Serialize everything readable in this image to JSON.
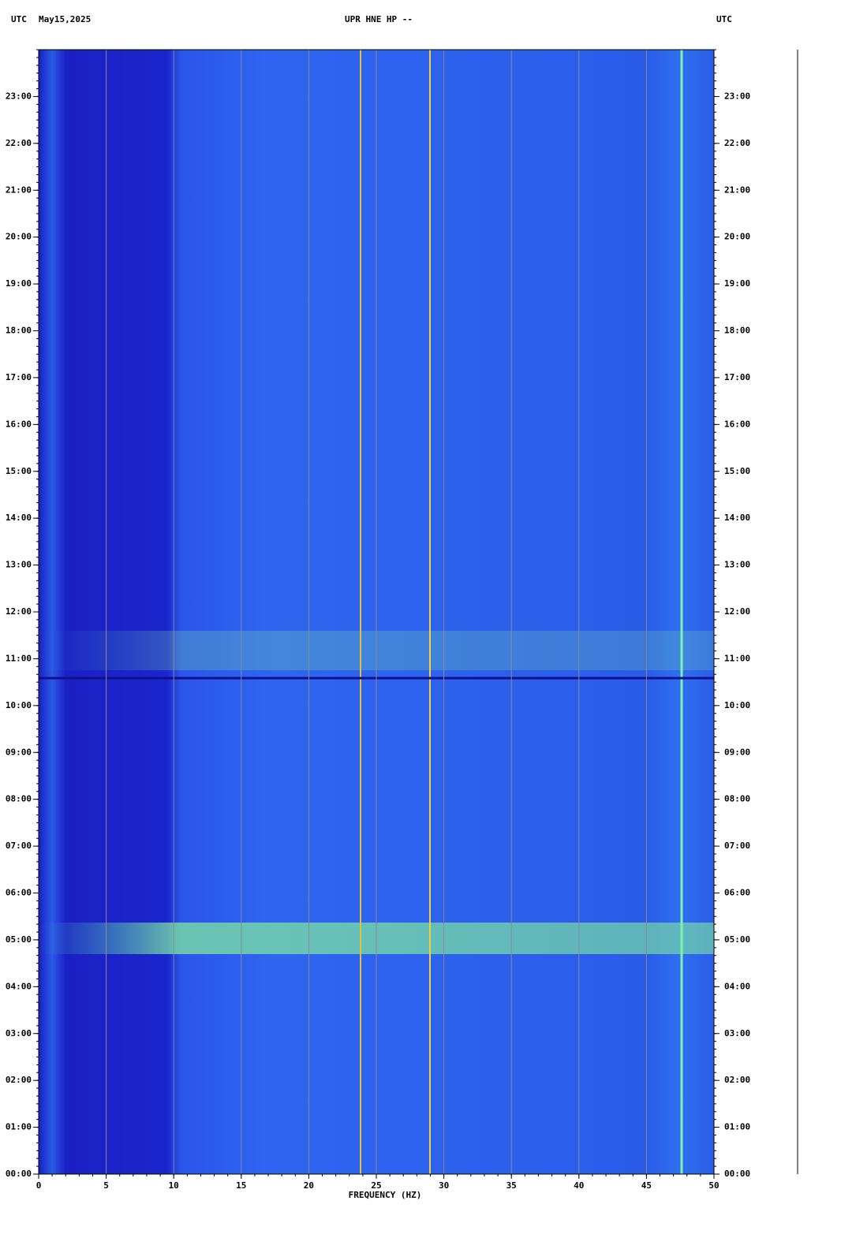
{
  "header": {
    "left_zone": "UTC",
    "date": "May15,2025",
    "station": "UPR HNE HP --",
    "right_zone": "UTC"
  },
  "chart_data": {
    "type": "spectrogram",
    "xlabel": "FREQUENCY (HZ)",
    "xlim": [
      0,
      50
    ],
    "xticks": [
      0,
      5,
      10,
      15,
      20,
      25,
      30,
      35,
      40,
      45,
      50
    ],
    "ylim": [
      0,
      24
    ],
    "yticks": [
      {
        "value": 0,
        "label": "00:00"
      },
      {
        "value": 1,
        "label": "01:00"
      },
      {
        "value": 2,
        "label": "02:00"
      },
      {
        "value": 3,
        "label": "03:00"
      },
      {
        "value": 4,
        "label": "04:00"
      },
      {
        "value": 5,
        "label": "05:00"
      },
      {
        "value": 6,
        "label": "06:00"
      },
      {
        "value": 7,
        "label": "07:00"
      },
      {
        "value": 8,
        "label": "08:00"
      },
      {
        "value": 9,
        "label": "09:00"
      },
      {
        "value": 10,
        "label": "10:00"
      },
      {
        "value": 11,
        "label": "11:00"
      },
      {
        "value": 12,
        "label": "12:00"
      },
      {
        "value": 13,
        "label": "13:00"
      },
      {
        "value": 14,
        "label": "14:00"
      },
      {
        "value": 15,
        "label": "15:00"
      },
      {
        "value": 16,
        "label": "16:00"
      },
      {
        "value": 17,
        "label": "17:00"
      },
      {
        "value": 18,
        "label": "18:00"
      },
      {
        "value": 19,
        "label": "19:00"
      },
      {
        "value": 20,
        "label": "20:00"
      },
      {
        "value": 21,
        "label": "21:00"
      },
      {
        "value": 22,
        "label": "22:00"
      },
      {
        "value": 23,
        "label": "23:00"
      }
    ],
    "grid": true
  }
}
